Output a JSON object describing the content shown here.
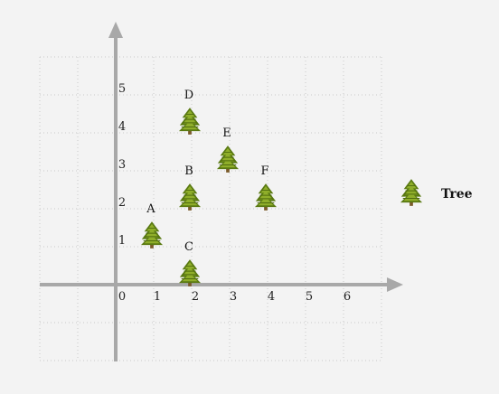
{
  "chart_data": {
    "type": "scatter",
    "xlim": [
      -2,
      7
    ],
    "ylim": [
      -2,
      6
    ],
    "x_ticks": [
      "0",
      "1",
      "2",
      "3",
      "4",
      "5",
      "6"
    ],
    "y_ticks": [
      "1",
      "2",
      "3",
      "4",
      "5"
    ],
    "grid": true,
    "legend_placement": "right",
    "series": [
      {
        "name": "Tree",
        "marker": "tree-icon",
        "points": [
          {
            "label": "A",
            "x": 1,
            "y": 1
          },
          {
            "label": "B",
            "x": 2,
            "y": 2
          },
          {
            "label": "C",
            "x": 2,
            "y": 0
          },
          {
            "label": "D",
            "x": 2,
            "y": 4
          },
          {
            "label": "E",
            "x": 3,
            "y": 3
          },
          {
            "label": "F",
            "x": 4,
            "y": 2
          }
        ]
      }
    ],
    "colors": {
      "axis": "#a8a8a8",
      "grid": "#c8c8c8",
      "tree_dark": "#5a7a12",
      "tree_light": "#9bb832",
      "trunk": "#7a5a2a"
    }
  }
}
